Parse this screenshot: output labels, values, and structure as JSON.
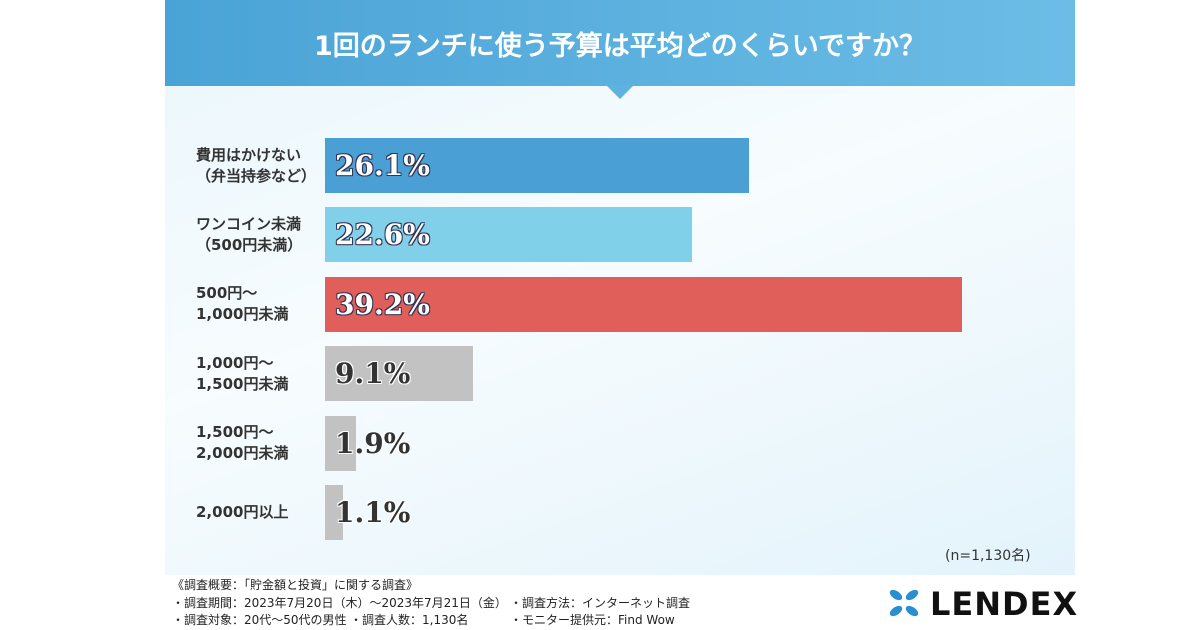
{
  "chart_data": {
    "type": "bar",
    "orientation": "horizontal",
    "title": "1回のランチに使う予算は平均どのくらいですか？",
    "categories": [
      "費用はかけない\n（弁当持参など）",
      "ワンコイン未満\n（500円未満）",
      "500円〜\n1,000円未満",
      "1,000円〜\n1,500円未満",
      "1,500円〜\n2,000円未満",
      "2,000円以上"
    ],
    "values": [
      26.1,
      22.6,
      39.2,
      9.1,
      1.9,
      1.1
    ],
    "value_labels": [
      "26.1%",
      "22.6%",
      "39.2%",
      "9.1%",
      "1.9%",
      "1.1%"
    ],
    "colors": [
      "#4aa0d5",
      "#80d0ea",
      "#e05f5a",
      "#c2c2c2",
      "#c2c2c2",
      "#c2c2c2"
    ],
    "note": "(n=1,130名)"
  },
  "footer": {
    "survey_title": "《調査概要：「貯金額と投資」に関する調査》",
    "period": "・調査期間：2023年7月20日（木）〜2023年7月21日（金）",
    "method": "・調査方法：インターネット調査",
    "target": "・調査対象：20代〜50代の男性",
    "count": "・調査人数：1,130名",
    "provider": "・モニター提供元：Find Wow",
    "brand": "LENDEX"
  }
}
